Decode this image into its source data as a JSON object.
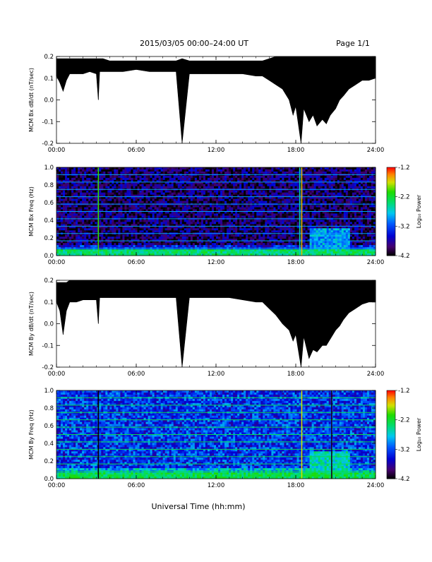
{
  "header": {
    "title": "2015/03/05  00:00–24:00 UT",
    "page": "Page 1/1"
  },
  "xlabel": "Universal Time (hh:mm)",
  "colorbar": {
    "label": "Log₁₀ Power",
    "ticks": [
      "-1.2",
      "-2.2",
      "-3.2",
      "-4.2"
    ],
    "range": [
      -4.2,
      -1.2
    ]
  },
  "chart_data": [
    {
      "type": "line",
      "ylabel": "MCM Bx dB/dt (nT/sec)",
      "xlim": [
        0,
        24
      ],
      "ylim": [
        -0.2,
        0.2
      ],
      "xticks": [
        "00:00",
        "06:00",
        "12:00",
        "18:00",
        "24:00"
      ],
      "yticks": [
        "0.2",
        "0.1",
        "0.0",
        "-0.1",
        "-0.2"
      ],
      "x": [
        0,
        0.25,
        0.5,
        0.75,
        1,
        1.5,
        2,
        2.5,
        3,
        3.15,
        3.25,
        3.5,
        4,
        5,
        6,
        7,
        8,
        9,
        9.45,
        10,
        11,
        12,
        13,
        14,
        15,
        15.5,
        16,
        16.5,
        17,
        17.5,
        17.8,
        18,
        18.4,
        18.6,
        19,
        19.3,
        19.6,
        20,
        20.3,
        20.6,
        21,
        21.3,
        21.6,
        22,
        22.5,
        23,
        23.5,
        24
      ],
      "ymin": [
        0.11,
        0.08,
        0.04,
        0.09,
        0.12,
        0.12,
        0.12,
        0.13,
        0.12,
        0.0,
        0.13,
        0.13,
        0.13,
        0.13,
        0.14,
        0.13,
        0.13,
        0.13,
        -0.2,
        0.12,
        0.12,
        0.12,
        0.12,
        0.12,
        0.11,
        0.11,
        0.09,
        0.07,
        0.05,
        0.0,
        -0.07,
        -0.03,
        -0.2,
        -0.04,
        -0.1,
        -0.07,
        -0.12,
        -0.09,
        -0.11,
        -0.07,
        -0.04,
        0.0,
        0.02,
        0.05,
        0.07,
        0.09,
        0.09,
        0.1
      ],
      "ymax": [
        0.19,
        0.19,
        0.19,
        0.19,
        0.19,
        0.19,
        0.19,
        0.19,
        0.19,
        0.19,
        0.19,
        0.19,
        0.18,
        0.18,
        0.18,
        0.18,
        0.18,
        0.18,
        0.19,
        0.18,
        0.18,
        0.18,
        0.18,
        0.18,
        0.18,
        0.18,
        0.19,
        0.2,
        0.2,
        0.2,
        0.2,
        0.2,
        0.2,
        0.2,
        0.2,
        0.2,
        0.2,
        0.2,
        0.2,
        0.2,
        0.2,
        0.2,
        0.2,
        0.2,
        0.2,
        0.2,
        0.2,
        0.2
      ]
    },
    {
      "type": "heatmap",
      "ylabel": "MCM Bx Freq (Hz)",
      "xlim": [
        0,
        24
      ],
      "ylim": [
        0.0,
        1.0
      ],
      "xticks": [
        "00:00",
        "06:00",
        "12:00",
        "18:00",
        "24:00"
      ],
      "yticks": [
        "1.0",
        "0.8",
        "0.6",
        "0.4",
        "0.2",
        "0.0"
      ],
      "base_log10_power": -3.9,
      "low_freq_band": {
        "fmax": 0.06,
        "log10_power": -2.4
      },
      "harmonic_lines_hz": [
        0.083,
        0.167,
        0.25,
        0.333,
        0.417,
        0.5,
        0.583,
        0.667,
        0.75,
        0.833,
        0.917
      ],
      "vertical_features": [
        {
          "time": 3.15,
          "log10_power": -2.0
        },
        {
          "time": 18.3,
          "log10_power": -2.6
        },
        {
          "time": 18.45,
          "log10_power": -1.6
        }
      ],
      "active_region": {
        "t_start": 19.0,
        "t_end": 22.0,
        "fmax": 0.3,
        "log10_power": -2.9
      }
    },
    {
      "type": "line",
      "ylabel": "MCM By dB/dt (nT/sec)",
      "xlim": [
        0,
        24
      ],
      "ylim": [
        -0.2,
        0.2
      ],
      "xticks": [
        "00:00",
        "06:00",
        "12:00",
        "18:00",
        "24:00"
      ],
      "yticks": [
        "0.2",
        "0.1",
        "0.0",
        "-0.1",
        "-0.2"
      ],
      "x": [
        0,
        0.25,
        0.5,
        0.75,
        1,
        1.5,
        2,
        2.5,
        3,
        3.15,
        3.25,
        3.5,
        4,
        5,
        6,
        7,
        8,
        9,
        9.45,
        10,
        11,
        12,
        13,
        14,
        15,
        15.5,
        16,
        16.5,
        17,
        17.5,
        17.8,
        18,
        18.4,
        18.6,
        19,
        19.3,
        19.6,
        20,
        20.3,
        20.6,
        21,
        21.3,
        21.6,
        22,
        22.5,
        23,
        23.5,
        24
      ],
      "ymin": [
        0.1,
        0.06,
        -0.05,
        0.06,
        0.1,
        0.1,
        0.11,
        0.11,
        0.11,
        0.0,
        0.12,
        0.12,
        0.12,
        0.12,
        0.12,
        0.12,
        0.12,
        0.12,
        -0.2,
        0.12,
        0.12,
        0.12,
        0.12,
        0.11,
        0.1,
        0.1,
        0.07,
        0.04,
        0.0,
        -0.03,
        -0.08,
        -0.05,
        -0.2,
        -0.06,
        -0.16,
        -0.12,
        -0.13,
        -0.1,
        -0.1,
        -0.07,
        -0.03,
        -0.01,
        0.02,
        0.05,
        0.07,
        0.09,
        0.1,
        0.1
      ],
      "ymax": [
        0.19,
        0.19,
        0.19,
        0.19,
        0.2,
        0.2,
        0.2,
        0.2,
        0.2,
        0.2,
        0.2,
        0.2,
        0.2,
        0.2,
        0.2,
        0.2,
        0.2,
        0.2,
        0.2,
        0.2,
        0.2,
        0.2,
        0.2,
        0.2,
        0.2,
        0.2,
        0.2,
        0.2,
        0.2,
        0.2,
        0.2,
        0.2,
        0.2,
        0.2,
        0.2,
        0.2,
        0.2,
        0.2,
        0.2,
        0.2,
        0.2,
        0.2,
        0.2,
        0.2,
        0.2,
        0.2,
        0.2,
        0.2
      ]
    },
    {
      "type": "heatmap",
      "ylabel": "MCM By Freq (Hz)",
      "xlim": [
        0,
        24
      ],
      "ylim": [
        0.0,
        1.0
      ],
      "xticks": [
        "00:00",
        "06:00",
        "12:00",
        "18:00",
        "24:00"
      ],
      "yticks": [
        "1.0",
        "0.8",
        "0.6",
        "0.4",
        "0.2",
        "0.0"
      ],
      "base_log10_power": -3.3,
      "low_freq_band": {
        "fmax": 0.06,
        "log10_power": -2.3
      },
      "harmonic_lines_hz": [
        0.083,
        0.167,
        0.25,
        0.333,
        0.417,
        0.5,
        0.583,
        0.667,
        0.75,
        0.833,
        0.917
      ],
      "vertical_features": [
        {
          "time": 3.15,
          "log10_power": -4.2
        },
        {
          "time": 18.45,
          "log10_power": -1.7
        },
        {
          "time": 20.7,
          "log10_power": -4.1
        }
      ],
      "active_region": {
        "t_start": 19.0,
        "t_end": 22.0,
        "fmax": 0.3,
        "log10_power": -2.6
      }
    }
  ]
}
